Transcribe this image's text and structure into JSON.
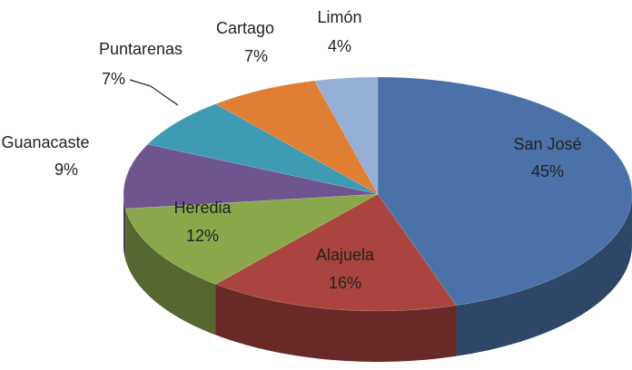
{
  "chart_data": {
    "type": "pie",
    "categories": [
      "San José",
      "Alajuela",
      "Heredia",
      "Guanacaste",
      "Puntarenas",
      "Cartago",
      "Limón"
    ],
    "values": [
      45,
      16,
      12,
      9,
      7,
      7,
      4
    ],
    "value_labels": [
      "45%",
      "16%",
      "12%",
      "9%",
      "7%",
      "7%",
      "4%"
    ],
    "colors": [
      "#4a72a8",
      "#a9443f",
      "#8aa84b",
      "#6e558e",
      "#3f9ab3",
      "#e07f33",
      "#94aed6"
    ]
  }
}
